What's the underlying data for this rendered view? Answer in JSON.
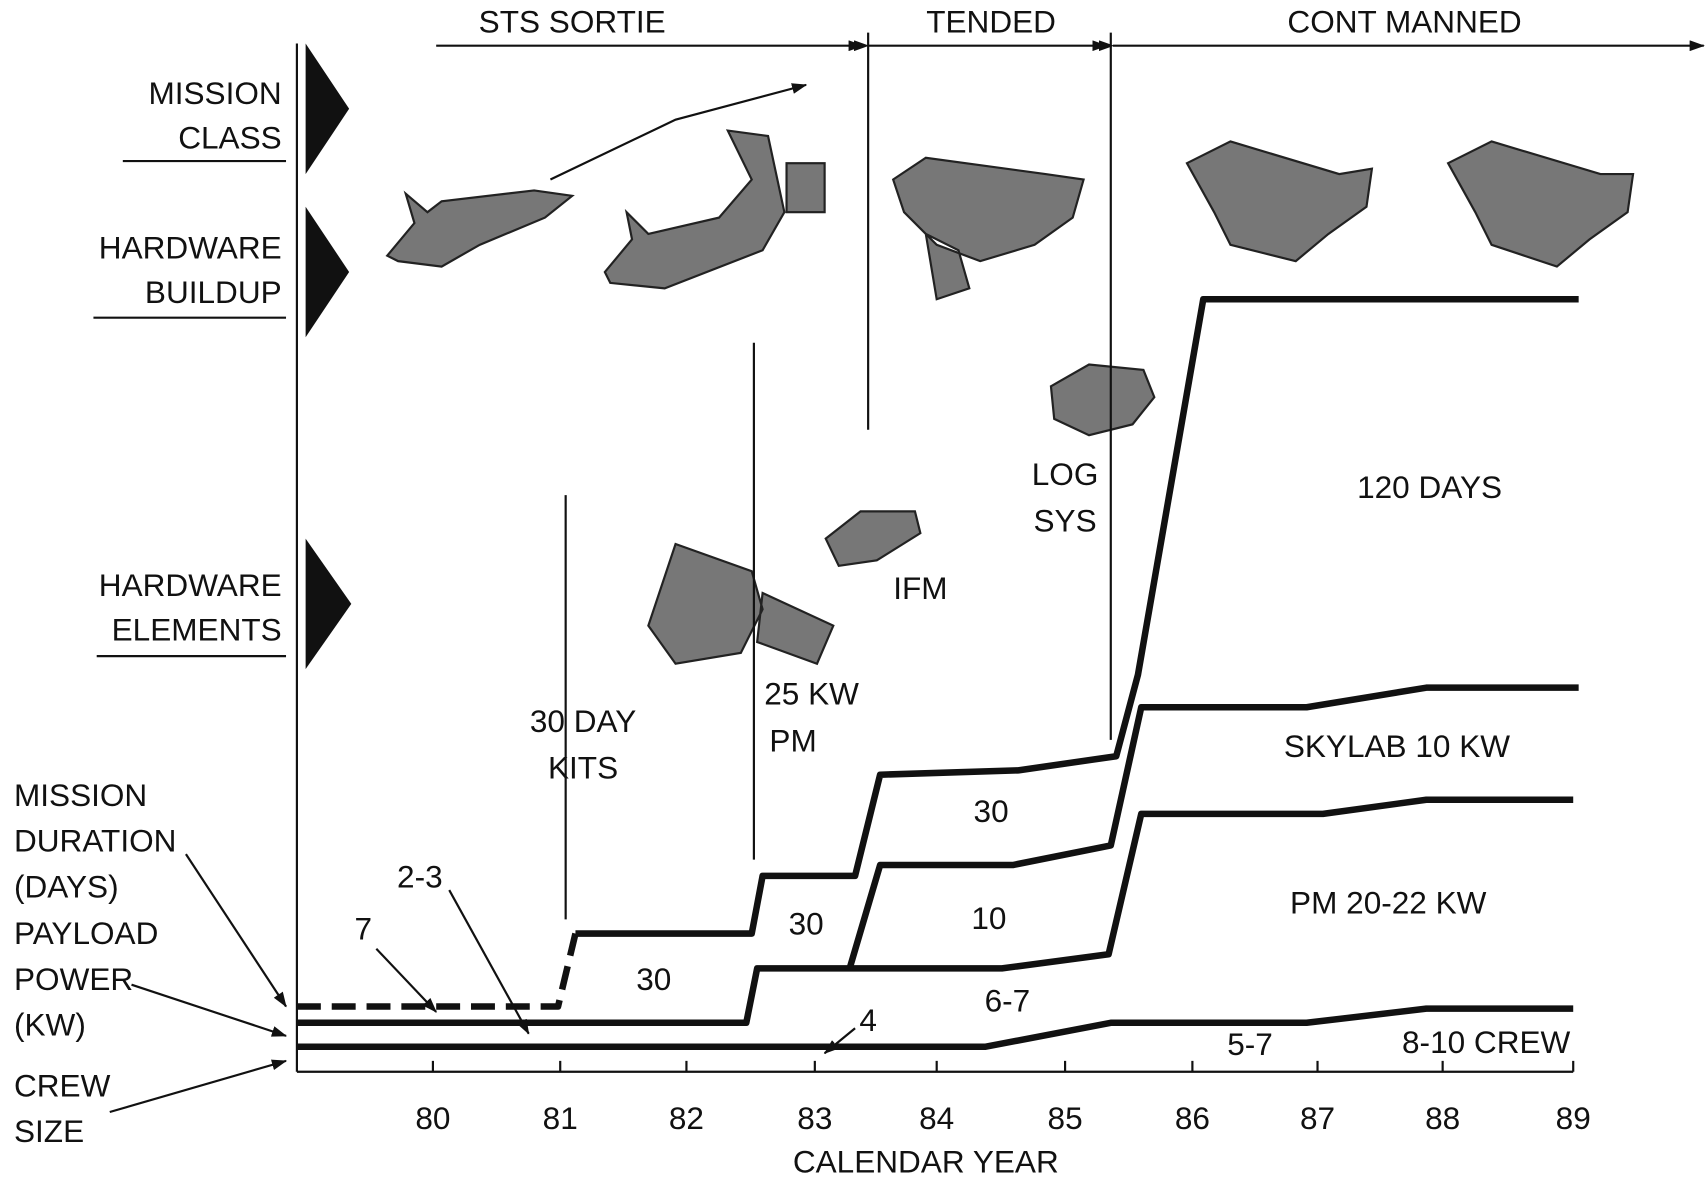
{
  "phases": [
    "STS SORTIE",
    "TENDED",
    "CONT MANNED"
  ],
  "row_labels": [
    [
      "MISSION",
      "CLASS"
    ],
    [
      "HARDWARE",
      "BUILDUP"
    ],
    [
      "HARDWARE",
      "ELEMENTS"
    ]
  ],
  "axis_labels": [
    [
      "MISSION",
      "DURATION",
      "(DAYS)"
    ],
    [
      "PAYLOAD",
      "POWER",
      "(KW)"
    ],
    [
      "CREW",
      "SIZE"
    ]
  ],
  "elements": [
    [
      "30 DAY",
      "KITS"
    ],
    [
      "25 KW",
      "PM"
    ],
    [
      "IFM"
    ],
    [
      "LOG",
      "SYS"
    ]
  ],
  "region_labels": [
    "120 DAYS",
    "SKYLAB 10 KW",
    "PM 20-22 KW",
    "8-10 CREW"
  ],
  "curve_labels": [
    "7",
    "2-3",
    "30",
    "30",
    "30",
    "10",
    "6-7",
    "4",
    "5-7"
  ],
  "x_axis": {
    "title": "CALENDAR YEAR",
    "ticks": [
      "80",
      "81",
      "82",
      "83",
      "84",
      "85",
      "86",
      "87",
      "88",
      "89"
    ]
  }
}
